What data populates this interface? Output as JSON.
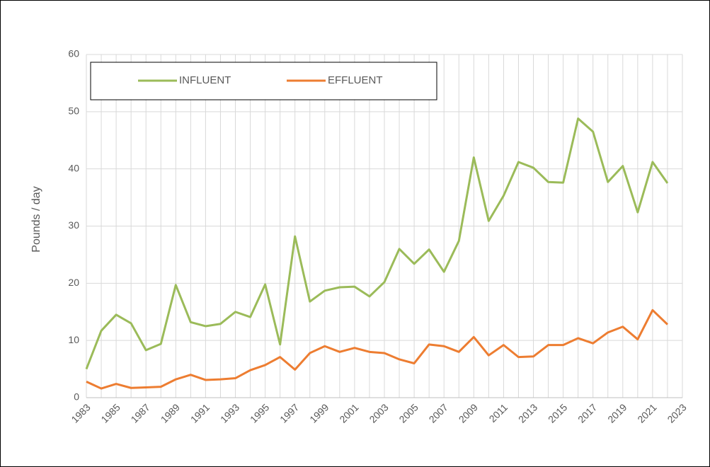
{
  "chart_data": {
    "type": "line",
    "y_label": "Pounds / day",
    "x": [
      1983,
      1984,
      1985,
      1986,
      1987,
      1988,
      1989,
      1990,
      1991,
      1992,
      1993,
      1994,
      1995,
      1996,
      1997,
      1998,
      1999,
      2000,
      2001,
      2002,
      2003,
      2004,
      2005,
      2006,
      2007,
      2008,
      2009,
      2010,
      2011,
      2012,
      2013,
      2014,
      2015,
      2016,
      2017,
      2018,
      2019,
      2020,
      2021,
      2022
    ],
    "series": [
      {
        "name": "INFLUENT",
        "color": "#9bbb59",
        "values": [
          5.0,
          11.7,
          14.5,
          13.0,
          8.3,
          9.4,
          19.7,
          13.2,
          12.5,
          12.9,
          15.0,
          14.1,
          19.8,
          9.3,
          28.2,
          16.8,
          18.7,
          19.3,
          19.4,
          17.7,
          20.2,
          26.0,
          23.4,
          25.9,
          22.0,
          27.4,
          42.0,
          30.9,
          35.3,
          41.2,
          40.2,
          37.7,
          37.6,
          48.8,
          46.5,
          37.7,
          40.5,
          32.4,
          41.2,
          37.5
        ]
      },
      {
        "name": "EFFLUENT",
        "color": "#ed7d31",
        "values": [
          2.8,
          1.6,
          2.4,
          1.7,
          1.8,
          1.9,
          3.2,
          4.0,
          3.1,
          3.2,
          3.4,
          4.8,
          5.7,
          7.1,
          4.9,
          7.8,
          9.0,
          8.0,
          8.7,
          8.0,
          7.8,
          6.7,
          6.0,
          9.3,
          9.0,
          8.0,
          10.6,
          7.4,
          9.2,
          7.1,
          7.2,
          9.2,
          9.2,
          10.4,
          9.5,
          11.4,
          12.4,
          10.2,
          15.3,
          12.8
        ]
      }
    ],
    "xlim": [
      1983,
      2023
    ],
    "xticks": [
      1983,
      1985,
      1987,
      1989,
      1991,
      1993,
      1995,
      1997,
      1999,
      2001,
      2003,
      2005,
      2007,
      2009,
      2011,
      2013,
      2015,
      2017,
      2019,
      2021,
      2023
    ],
    "x_minor_ticks": [
      1984,
      1986,
      1988,
      1990,
      1992,
      1994,
      1996,
      1998,
      2000,
      2002,
      2004,
      2006,
      2008,
      2010,
      2012,
      2014,
      2016,
      2018,
      2020,
      2022
    ],
    "ylim": [
      0,
      60
    ],
    "yticks": [
      0,
      10,
      20,
      30,
      40,
      50,
      60
    ],
    "grid": true,
    "legend": "top-left"
  }
}
